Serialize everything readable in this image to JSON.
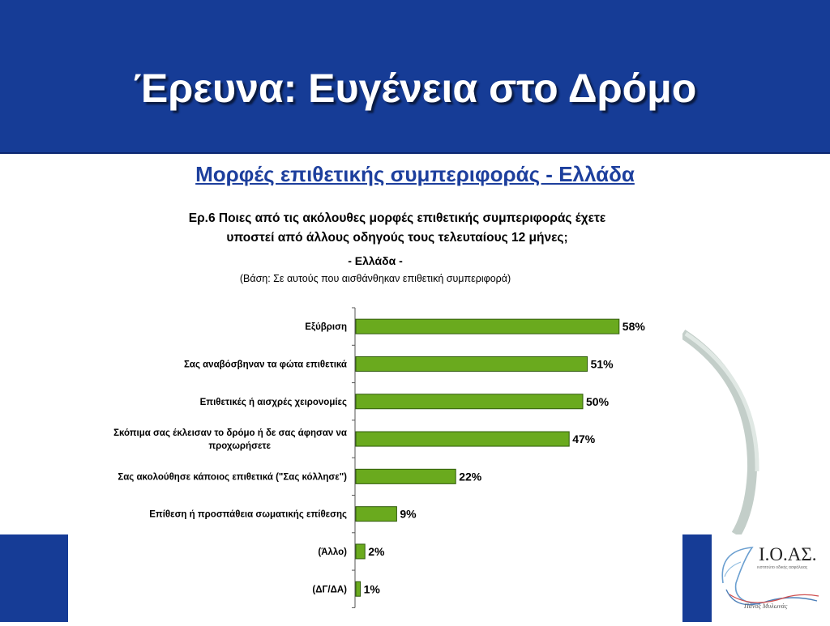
{
  "slide": {
    "title": "Έρευνα: Ευγένεια στο Δρόμο",
    "subtitle": "Μορφές επιθετικής συμπεριφοράς - Ελλάδα",
    "question_line1": "Ερ.6 Ποιες από τις ακόλουθες μορφές επιθετικής συμπεριφοράς έχετε",
    "question_line2": "υποστεί από άλλους οδηγούς τους τελευταίους 12 μήνες;",
    "region": "- Ελλάδα -",
    "base_note": "(Βάση: Σε αυτούς που αισθάνθηκαν επιθετική συμπεριφορά)"
  },
  "logo": {
    "text": "Ι.Ο.ΑΣ.",
    "subtext": "ινστιτούτο οδικής ασφάλειας",
    "name": "Πάνος Μυλωνάς"
  },
  "colors": {
    "header_band": "#163c96",
    "subtitle_text": "#1d3f9d",
    "bar_fill": "#6aaa1e",
    "bar_edge": "#2f5a0a"
  },
  "chart_data": {
    "type": "bar",
    "orientation": "horizontal",
    "categories": [
      [
        "Εξύβριση"
      ],
      [
        "Σας αναβόσβηναν τα φώτα επιθετικά"
      ],
      [
        "Επιθετικές ή αισχρές χειρονομίες"
      ],
      [
        "Σκόπιμα σας έκλεισαν το δρόμο ή δε σας άφησαν να",
        "προχωρήσετε"
      ],
      [
        "Σας ακολούθησε κάποιος επιθετικά (\"Σας κόλλησε\")"
      ],
      [
        "Επίθεση ή προσπάθεια σωματικής επίθεσης"
      ],
      [
        "(Άλλο)"
      ],
      [
        "(ΔΓ/ΔΑ)"
      ]
    ],
    "values": [
      58,
      51,
      50,
      47,
      22,
      9,
      2,
      1
    ],
    "value_labels": [
      "58%",
      "51%",
      "50%",
      "47%",
      "22%",
      "9%",
      "2%",
      "1%"
    ],
    "unit": "%",
    "xlim": [
      0,
      100
    ],
    "grid": false,
    "legend": "none"
  }
}
